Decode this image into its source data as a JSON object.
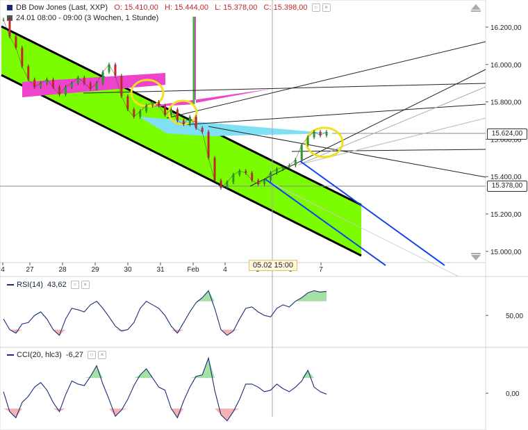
{
  "header": {
    "title": "DB Dow Jones (Last, XXP)",
    "open": "O: 15.410,00",
    "high": "H: 15.444,00",
    "low": "L: 15.378,00",
    "close": "C: 15.398,00",
    "period": "24.01 08:00 - 09:00 (3 Wochen, 1 Stunde)"
  },
  "chart_data": [
    {
      "type": "line",
      "name": "price",
      "x_tick_labels": [
        "4",
        "27",
        "28",
        "29",
        "30",
        "31",
        "Feb",
        "4",
        "5",
        "6",
        "7"
      ],
      "y_tick_labels": [
        "16.200,00",
        "16.000,00",
        "15.800,00",
        "15.600,00",
        "15.400,00",
        "15.200,00",
        "15.000,00"
      ],
      "y_ticks": [
        16200,
        16000,
        15800,
        15600,
        15400,
        15200,
        15000
      ],
      "ylim": [
        14940,
        16345
      ],
      "price_tags": [
        {
          "label": "15.624,00",
          "value": 15624
        },
        {
          "label": "15.378,00",
          "value": 15378
        }
      ],
      "crosshair_label": "05.02 15:00",
      "series": [
        {
          "values": [
            16240,
            16150,
            16090,
            15990,
            15920,
            15880,
            15900,
            15920,
            15880,
            15840,
            15880,
            15900,
            15930,
            15900,
            15870,
            15900,
            15960,
            16000,
            15940,
            15830,
            15760,
            15720,
            15750,
            15780,
            15800,
            15780,
            15730,
            15760,
            15700,
            15680,
            15720,
            15660,
            15640,
            15500,
            15380,
            15340,
            15370,
            15410,
            15430,
            15420,
            15380,
            15360,
            15380,
            15420,
            15440,
            15450,
            15460,
            15490,
            15570,
            15610,
            15640,
            15620,
            15640
          ]
        }
      ]
    },
    {
      "type": "line",
      "title": "RSI(14)",
      "value_label": "43,62",
      "y_tick_labels": [
        "50,00"
      ],
      "y_ticks": [
        50
      ],
      "ylim": [
        5,
        105
      ],
      "series": [
        {
          "values": [
            45,
            30,
            25,
            38,
            40,
            50,
            55,
            45,
            30,
            22,
            45,
            60,
            58,
            55,
            65,
            70,
            60,
            48,
            35,
            28,
            30,
            40,
            60,
            70,
            65,
            60,
            50,
            35,
            25,
            40,
            55,
            68,
            75,
            85,
            60,
            30,
            22,
            28,
            45,
            60,
            62,
            55,
            50,
            48,
            60,
            65,
            62,
            70,
            75,
            82,
            85,
            83,
            84
          ]
        }
      ]
    },
    {
      "type": "line",
      "title": "CCI(20, hlc3)",
      "value_label": "-6,27",
      "y_tick_labels": [
        "0,00"
      ],
      "y_ticks": [
        0
      ],
      "ylim": [
        -240,
        300
      ],
      "series": [
        {
          "values": [
            10,
            -120,
            -160,
            -60,
            -20,
            40,
            70,
            20,
            -60,
            -120,
            -10,
            80,
            60,
            50,
            110,
            180,
            60,
            -40,
            -150,
            -110,
            -40,
            50,
            120,
            160,
            100,
            40,
            20,
            -100,
            -160,
            -50,
            40,
            110,
            120,
            230,
            20,
            -140,
            -180,
            -120,
            -40,
            60,
            60,
            40,
            10,
            20,
            60,
            30,
            10,
            40,
            80,
            150,
            40,
            10,
            -6
          ]
        }
      ]
    }
  ]
}
